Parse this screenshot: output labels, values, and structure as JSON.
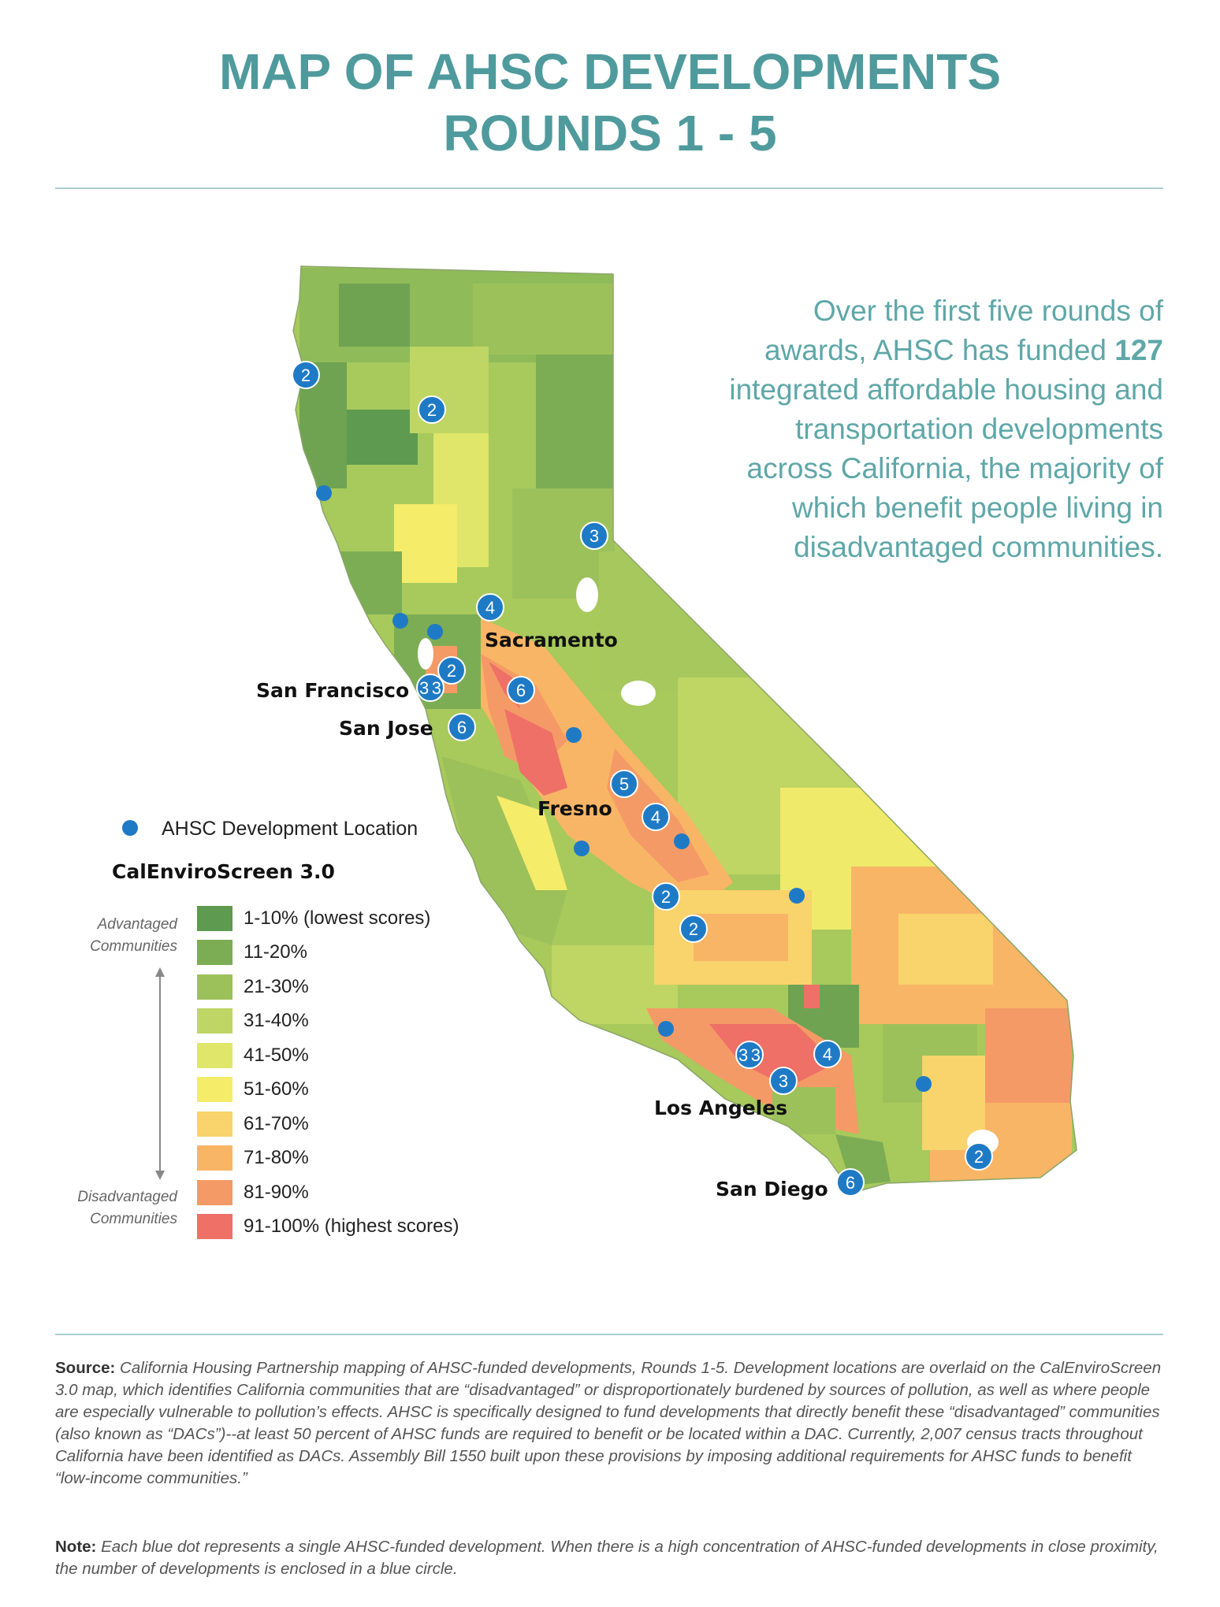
{
  "header": {
    "title_line1": "MAP OF AHSC DEVELOPMENTS",
    "title_line2": "ROUNDS 1 - 5"
  },
  "blurb": {
    "before": "Over the first five rounds of awards, AHSC has funded ",
    "count": "127",
    "after": " integrated affordable housing and transportation developments across California, the majority of which benefit people living in disadvantaged communities."
  },
  "map": {
    "cities": {
      "sacramento": "Sacramento",
      "san_francisco": "San Francisco",
      "san_jose": "San Jose",
      "fresno": "Fresno",
      "los_angeles": "Los Angeles",
      "san_diego": "San Diego"
    },
    "markers": [
      {
        "id": "crescent",
        "count": "2"
      },
      {
        "id": "redding",
        "count": "2"
      },
      {
        "id": "eureka",
        "count": ""
      },
      {
        "id": "tahoe",
        "count": "3"
      },
      {
        "id": "auburn",
        "count": "4"
      },
      {
        "id": "santa-rosa",
        "count": ""
      },
      {
        "id": "napa",
        "count": ""
      },
      {
        "id": "richmond",
        "count": "2"
      },
      {
        "id": "sf",
        "count": "33"
      },
      {
        "id": "stockton",
        "count": "6"
      },
      {
        "id": "san-jose",
        "count": "6"
      },
      {
        "id": "modesto",
        "count": ""
      },
      {
        "id": "madera",
        "count": "5"
      },
      {
        "id": "fresno",
        "count": "4"
      },
      {
        "id": "hanford",
        "count": ""
      },
      {
        "id": "visalia",
        "count": ""
      },
      {
        "id": "bakersfield-n",
        "count": "2"
      },
      {
        "id": "bakersfield",
        "count": "2"
      },
      {
        "id": "ridgecrest",
        "count": ""
      },
      {
        "id": "ventura",
        "count": ""
      },
      {
        "id": "la",
        "count": "33"
      },
      {
        "id": "san-bernardino",
        "count": "4"
      },
      {
        "id": "long-beach",
        "count": "3"
      },
      {
        "id": "palm-springs",
        "count": ""
      },
      {
        "id": "imperial",
        "count": "2"
      },
      {
        "id": "san-diego",
        "count": "6"
      }
    ]
  },
  "legend": {
    "dot_label": "AHSC Development Location",
    "title": "CalEnviroScreen 3.0",
    "advantaged_label": "Advantaged Communities",
    "disadvantaged_label": "Disadvantaged Communities",
    "items": [
      {
        "label": "1-10% (lowest scores)",
        "color": "#5e9a4f"
      },
      {
        "label": "11-20%",
        "color": "#7cad54"
      },
      {
        "label": "21-30%",
        "color": "#9dc15a"
      },
      {
        "label": "31-40%",
        "color": "#bfd564"
      },
      {
        "label": "41-50%",
        "color": "#dfe66a"
      },
      {
        "label": "51-60%",
        "color": "#f5ec6a"
      },
      {
        "label": "61-70%",
        "color": "#f9d36b"
      },
      {
        "label": "71-80%",
        "color": "#f8b566"
      },
      {
        "label": "81-90%",
        "color": "#f49a66"
      },
      {
        "label": "91-100% (highest scores)",
        "color": "#ee7067"
      }
    ]
  },
  "footer": {
    "source_label": "Source:",
    "source_text": " California Housing Partnership mapping of AHSC-funded developments, Rounds 1-5. Development locations are overlaid on the CalEnviroScreen 3.0 map, which identifies California communities that are “disadvantaged” or disproportionately burdened by sources of pollution, as well as where people are especially vulnerable to pollution’s effects. AHSC is specifically designed to fund developments that directly benefit these “disadvantaged” communities (also known as “DACs”)--at least 50 percent of AHSC funds are required to benefit or be located within a DAC. Currently, 2,007 census tracts throughout California have been identified as DACs. Assembly Bill 1550 built upon these provisions by imposing additional requirements for AHSC funds to benefit “low-income communities.”",
    "note_label": "Note:",
    "note_text": " Each blue dot represents a single AHSC-funded development. When there is a high concentration of AHSC-funded developments in close proximity, the number of developments is enclosed in a blue circle."
  },
  "colors": {
    "title": "#4f9a9c",
    "marker": "#1f7ac6",
    "rule": "#a9cfd1"
  }
}
